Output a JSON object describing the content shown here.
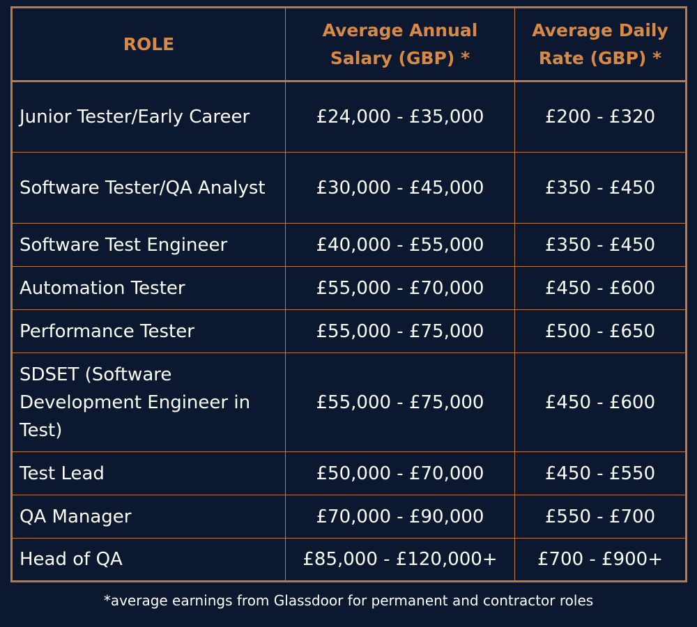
{
  "table": {
    "headers": [
      "ROLE",
      "Average Annual Salary (GBP) *",
      "Average Daily Rate  (GBP) *"
    ],
    "rows": [
      {
        "role": "Junior Tester/Early Career",
        "salary": "£24,000 - £35,000",
        "rate": "£200 - £320"
      },
      {
        "role": "Software Tester/QA Analyst",
        "salary": "£30,000 - £45,000",
        "rate": "£350 - £450"
      },
      {
        "role": "Software Test Engineer",
        "salary": "£40,000 - £55,000",
        "rate": "£350 - £450"
      },
      {
        "role": "Automation Tester",
        "salary": "£55,000 - £70,000",
        "rate": "£450 - £600"
      },
      {
        "role": "Performance Tester",
        "salary": "£55,000 - £75,000",
        "rate": "£500 - £650"
      },
      {
        "role": "SDSET (Software Development Engineer in Test)",
        "salary": "£55,000 - £75,000",
        "rate": "£450 - £600"
      },
      {
        "role": "Test Lead",
        "salary": "£50,000 - £70,000",
        "rate": "£450 - £550"
      },
      {
        "role": "QA Manager",
        "salary": "£70,000 - £90,000",
        "rate": "£550 - £700"
      },
      {
        "role": "Head of QA",
        "salary": "£85,000 - £120,000+",
        "rate": "£700 - £900+"
      }
    ]
  },
  "footnote": "*average earnings from Glassdoor for permanent and contractor roles",
  "colors": {
    "background": "#0c1830",
    "accent": "#d88a44",
    "border": "#c17a3e",
    "text": "#ffffff"
  }
}
